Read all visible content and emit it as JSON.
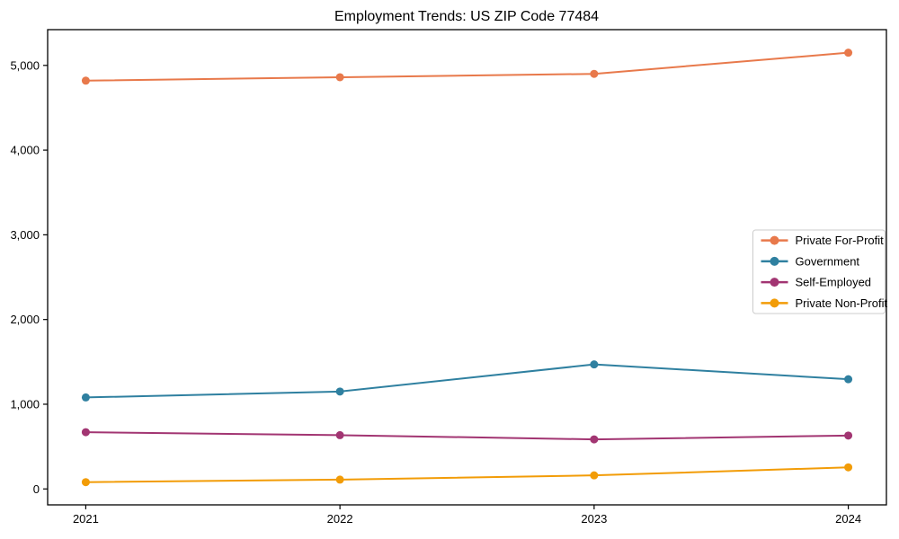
{
  "chart_data": {
    "type": "line",
    "title": "Employment Trends: US ZIP Code 77484",
    "xlabel": "",
    "ylabel": "",
    "x": [
      2021,
      2022,
      2023,
      2024
    ],
    "x_tick_labels": [
      "2021",
      "2022",
      "2023",
      "2024"
    ],
    "series": [
      {
        "name": "Private For-Profit",
        "color": "#e8794b",
        "values": [
          4820,
          4860,
          4900,
          5150
        ]
      },
      {
        "name": "Government",
        "color": "#2f80a0",
        "values": [
          1080,
          1150,
          1470,
          1295
        ]
      },
      {
        "name": "Self-Employed",
        "color": "#a23572",
        "values": [
          670,
          635,
          585,
          630
        ]
      },
      {
        "name": "Private Non-Profit",
        "color": "#f29c07",
        "values": [
          80,
          110,
          160,
          255
        ]
      }
    ],
    "yticks": [
      0,
      1000,
      2000,
      3000,
      4000,
      5000
    ],
    "ytick_labels": [
      "0",
      "1,000",
      "2,000",
      "3,000",
      "4,000",
      "5,000"
    ],
    "xlim": [
      2020.85,
      2024.15
    ],
    "ylim": [
      -188,
      5422
    ],
    "grid": false,
    "legend_position": "center-right",
    "marker": "circle",
    "line_width": 2,
    "marker_radius": 4.5,
    "spine_color": "#000000",
    "legend_border_color": "#cccccc",
    "background_color": "#ffffff"
  }
}
